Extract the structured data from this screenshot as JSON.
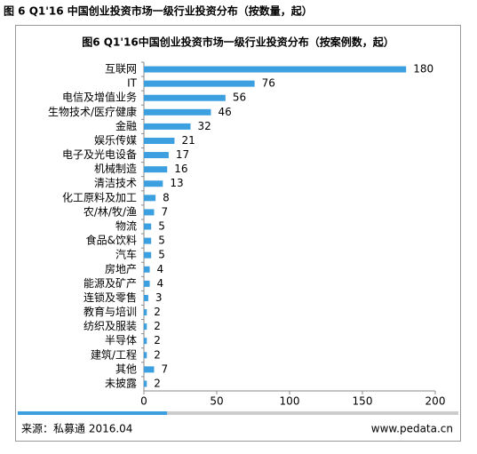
{
  "page_title": "图 6 Q1'16 中国创业投资市场一级行业投资分布（按数量，起）",
  "chart_data": {
    "type": "bar",
    "orientation": "horizontal",
    "title": "图6 Q1'16中国创业投资市场一级行业投资分布（按案例数，起）",
    "categories": [
      "互联网",
      "IT",
      "电信及增值业务",
      "生物技术/医疗健康",
      "金融",
      "娱乐传媒",
      "电子及光电设备",
      "机械制造",
      "清洁技术",
      "化工原料及加工",
      "农/林/牧/渔",
      "物流",
      "食品&饮料",
      "汽车",
      "房地产",
      "能源及矿产",
      "连锁及零售",
      "教育与培训",
      "纺织及服装",
      "半导体",
      "建筑/工程",
      "其他",
      "未披露"
    ],
    "values": [
      180,
      76,
      56,
      46,
      32,
      21,
      17,
      16,
      13,
      8,
      7,
      5,
      5,
      5,
      4,
      4,
      3,
      2,
      2,
      2,
      2,
      7,
      2
    ],
    "color": "#3b9fe0",
    "xlim": [
      0,
      200
    ],
    "xticks": [
      0,
      50,
      100,
      150,
      200
    ]
  },
  "footer": {
    "source": "来源：私募通 2016.04",
    "site": "www.pedata.cn"
  }
}
